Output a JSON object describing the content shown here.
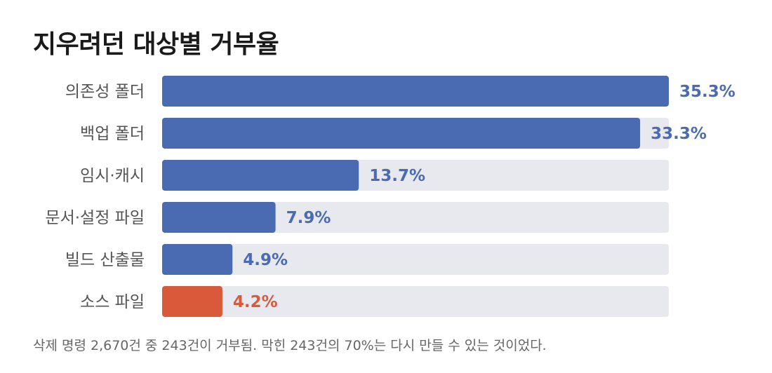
{
  "title": "지우려던 대상별 거부율",
  "footnote": "삭제 명령 2,670건 중 243건이 거부됨. 막힌 243건의 70%는 다시 만들 수 있는 것이었다.",
  "colors": {
    "bar": "#4a6bb1",
    "highlight": "#d85a3b",
    "track": "#e8e9ee"
  },
  "chart_data": {
    "type": "bar",
    "orientation": "horizontal",
    "title": "지우려던 대상별 거부율",
    "xlabel": "",
    "ylabel": "",
    "xlim": [
      0,
      35.3
    ],
    "unit": "%",
    "grid": false,
    "categories": [
      "의존성 폴더",
      "백업 폴더",
      "임시·캐시",
      "문서·설정 파일",
      "빌드 산출물",
      "소스 파일"
    ],
    "values": [
      35.3,
      33.3,
      13.7,
      7.9,
      4.9,
      4.2
    ],
    "value_labels": [
      "35.3%",
      "33.3%",
      "13.7%",
      "7.9%",
      "4.9%",
      "4.2%"
    ],
    "highlighted": [
      false,
      false,
      false,
      false,
      false,
      true
    ]
  }
}
